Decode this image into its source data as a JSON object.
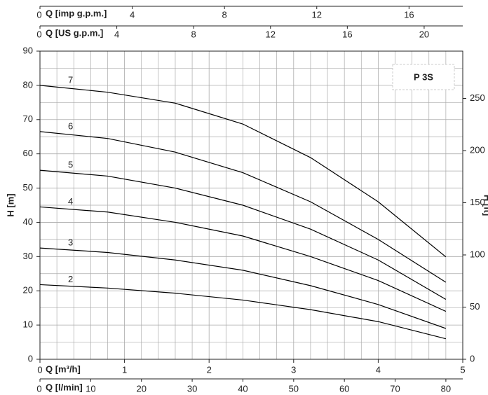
{
  "chart_data": {
    "type": "line",
    "title": "P 3S",
    "y_label": "H [m]",
    "y2_label": "H [ft]",
    "x_label": "Q [m³/h]",
    "xlim": [
      0,
      5
    ],
    "xticks": [
      0,
      1,
      2,
      3,
      4,
      5
    ],
    "ylim": [
      0,
      90
    ],
    "yticks": [
      0,
      10,
      20,
      30,
      40,
      50,
      60,
      70,
      80,
      90
    ],
    "y2lim": [
      0,
      295.3
    ],
    "y2ticks": [
      0,
      50,
      100,
      150,
      200,
      250
    ],
    "grid": true,
    "secondary_x_axes": [
      {
        "label": "Q [l/min]",
        "position": "bottom",
        "lim": [
          0,
          83.33
        ],
        "ticks": [
          0,
          10,
          20,
          30,
          40,
          50,
          60,
          70,
          80
        ]
      },
      {
        "label": "Q [US g.p.m.]",
        "position": "top",
        "lim": [
          0,
          22.01
        ],
        "ticks": [
          0,
          4,
          8,
          12,
          16,
          20
        ]
      },
      {
        "label": "Q [imp g.p.m.]",
        "position": "top",
        "lim": [
          0,
          18.33
        ],
        "ticks": [
          0,
          4,
          8,
          12,
          16
        ]
      }
    ],
    "x": [
      0,
      0.8,
      1.6,
      2.4,
      3.2,
      4.0,
      4.8
    ],
    "series": [
      {
        "name": "7",
        "color": "#000000",
        "values": [
          80,
          78,
          74.8,
          68.7,
          58.9,
          46,
          29.9
        ]
      },
      {
        "name": "6",
        "color": "#000000",
        "values": [
          66.5,
          64.5,
          60.5,
          54.5,
          46,
          35,
          22.5
        ]
      },
      {
        "name": "5",
        "color": "#000000",
        "values": [
          55.2,
          53.5,
          50,
          45,
          38,
          29,
          17.5
        ]
      },
      {
        "name": "4",
        "color": "#000000",
        "values": [
          44.5,
          43,
          40,
          36,
          30,
          23,
          14
        ]
      },
      {
        "name": "3",
        "color": "#000000",
        "values": [
          32.5,
          31.2,
          29,
          26,
          21.5,
          16,
          9
        ]
      },
      {
        "name": "2",
        "color": "#000000",
        "values": [
          21.8,
          20.8,
          19.3,
          17.3,
          14.5,
          11,
          6
        ]
      }
    ]
  }
}
